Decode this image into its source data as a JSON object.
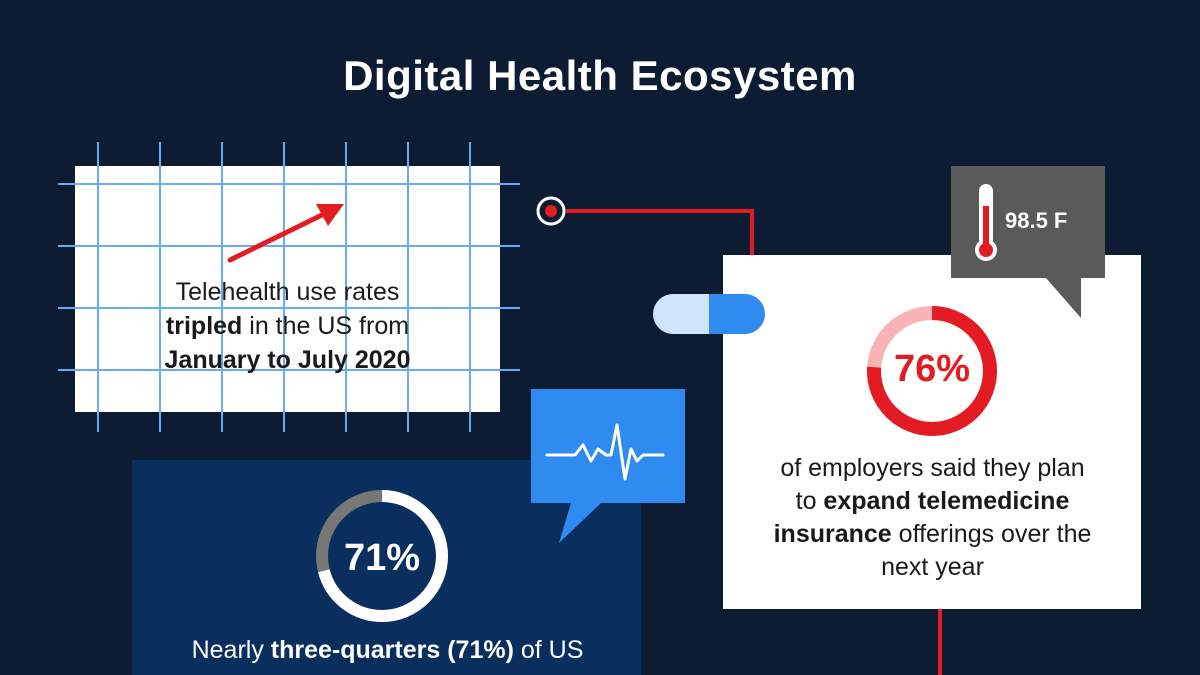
{
  "title": "Digital Health Ecosystem",
  "telehealth": {
    "line1": "Telehealth use rates",
    "line2_bold": "tripled",
    "line2_rest": " in the US from",
    "line3_bold": "January to July 2020"
  },
  "employers": {
    "percent_label": "76%",
    "percent_value": 76,
    "text_a": "of employers said they plan",
    "text_b_pre": "to ",
    "text_b_bold": "expand telemedicine",
    "text_c_bold": "insurance",
    "text_c_rest": " offerings over the",
    "text_d": "next year"
  },
  "thermometer": {
    "reading": "98.5 F",
    "icon": "thermometer-icon"
  },
  "consumers": {
    "percent_label": "71%",
    "percent_value": 71,
    "text_pre": "Nearly ",
    "text_bold": "three-quarters (71%)",
    "text_rest": " of US"
  },
  "icons": {
    "heartbeat": "heartbeat-icon",
    "pill": "pill-icon",
    "trend_arrow": "trend-arrow-icon",
    "connector_node": "connector-node-icon"
  },
  "colors": {
    "background": "#0d1b33",
    "accent_red": "#e31b23",
    "accent_blue": "#2f8bf0",
    "light_blue": "#cde4fb",
    "navy_card": "#0a2f5e",
    "gray_box": "#5a5a5a"
  }
}
